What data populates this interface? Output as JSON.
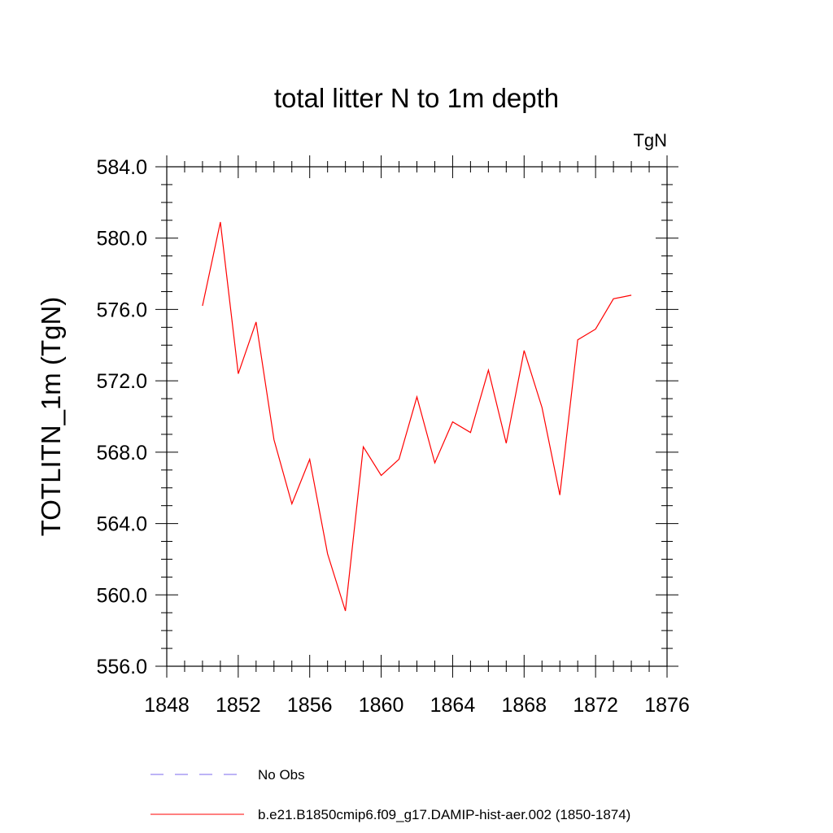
{
  "chart_data": {
    "type": "line",
    "title": "total litter N to 1m depth",
    "units": "TgN",
    "ylabel": "TOTLITN_1m  (TgN)",
    "xlabel": "",
    "xlim": [
      1848,
      1876
    ],
    "ylim": [
      556,
      584
    ],
    "x_ticks": [
      1848,
      1852,
      1856,
      1860,
      1864,
      1868,
      1872,
      1876
    ],
    "x_tick_labels": [
      "1848",
      "1852",
      "1856",
      "1860",
      "1864",
      "1868",
      "1872",
      "1876"
    ],
    "y_ticks": [
      556,
      560,
      564,
      568,
      572,
      576,
      580,
      584
    ],
    "y_tick_labels": [
      "556.0",
      "560.0",
      "564.0",
      "568.0",
      "572.0",
      "576.0",
      "580.0",
      "584.0"
    ],
    "grid": false,
    "legend_position": "bottom",
    "series": [
      {
        "name": "b.e21.B1850cmip6.f09_g17.DAMIP-hist-aer.002 (1850-1874)",
        "color": "#ff0000",
        "style": "solid",
        "x": [
          1850,
          1851,
          1852,
          1853,
          1854,
          1855,
          1856,
          1857,
          1858,
          1859,
          1860,
          1861,
          1862,
          1863,
          1864,
          1865,
          1866,
          1867,
          1868,
          1869,
          1870,
          1871,
          1872,
          1873,
          1874
        ],
        "values": [
          576.2,
          580.9,
          572.4,
          575.3,
          568.7,
          565.1,
          567.6,
          562.3,
          559.1,
          568.3,
          566.7,
          567.6,
          571.1,
          567.4,
          569.7,
          569.1,
          572.6,
          568.5,
          573.7,
          570.5,
          565.6,
          574.3,
          574.9,
          576.6,
          576.8
        ]
      }
    ],
    "legend": [
      {
        "label": "No Obs",
        "color": "#7b68ee",
        "style": "dashed"
      },
      {
        "label": "b.e21.B1850cmip6.f09_g17.DAMIP-hist-aer.002 (1850-1874)",
        "color": "#ff0000",
        "style": "solid"
      }
    ]
  }
}
